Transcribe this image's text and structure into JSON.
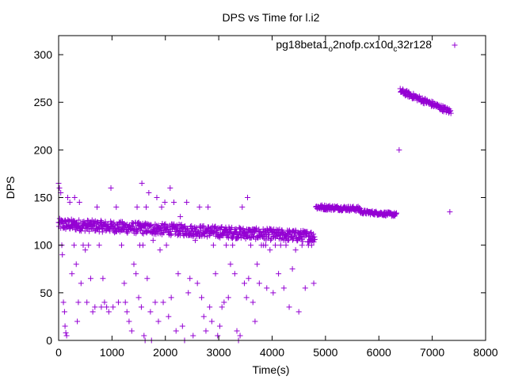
{
  "chart_data": {
    "type": "scatter",
    "title": "DPS vs Time for l.i2",
    "xlabel": "Time(s)",
    "ylabel": "DPS",
    "xlim": [
      0,
      8000
    ],
    "ylim": [
      0,
      320
    ],
    "xticks": [
      0,
      1000,
      2000,
      3000,
      4000,
      5000,
      6000,
      7000,
      8000
    ],
    "yticks": [
      0,
      50,
      100,
      150,
      200,
      250,
      300
    ],
    "grid": false,
    "legend_position": "top-right",
    "point_color": "#9400d3",
    "series": [
      {
        "name": "pg18beta1_o2nofp.cx10d_c32r128",
        "name_parts": {
          "base": "pg18beta1",
          "sub1": "o",
          "mid": "2nofp.cx10d",
          "sub2": "c",
          "tail": "32r128"
        },
        "marker": "plus",
        "segments": [
          {
            "x_start": 0,
            "x_end": 4800,
            "y_center_start": 122,
            "y_center_end": 109,
            "band": 12,
            "count": 720
          },
          {
            "x_start": 4820,
            "x_end": 5650,
            "y_center_start": 140,
            "y_center_end": 138,
            "band": 5,
            "count": 110
          },
          {
            "x_start": 5650,
            "x_end": 6330,
            "y_center_start": 135,
            "y_center_end": 132,
            "band": 4,
            "count": 90
          },
          {
            "x_start": 6400,
            "x_end": 7350,
            "y_center_start": 262,
            "y_center_end": 240,
            "band": 6,
            "count": 120
          }
        ],
        "outliers": [
          [
            0,
            165
          ],
          [
            15,
            160
          ],
          [
            40,
            155
          ],
          [
            60,
            100
          ],
          [
            70,
            90
          ],
          [
            90,
            40
          ],
          [
            110,
            30
          ],
          [
            120,
            15
          ],
          [
            135,
            8
          ],
          [
            150,
            5
          ],
          [
            170,
            150
          ],
          [
            210,
            145
          ],
          [
            250,
            70
          ],
          [
            290,
            100
          ],
          [
            300,
            150
          ],
          [
            330,
            80
          ],
          [
            350,
            20
          ],
          [
            370,
            40
          ],
          [
            390,
            145
          ],
          [
            420,
            60
          ],
          [
            460,
            100
          ],
          [
            500,
            95
          ],
          [
            530,
            40
          ],
          [
            560,
            100
          ],
          [
            600,
            65
          ],
          [
            640,
            30
          ],
          [
            680,
            35
          ],
          [
            720,
            140
          ],
          [
            760,
            100
          ],
          [
            800,
            35
          ],
          [
            830,
            65
          ],
          [
            860,
            40
          ],
          [
            900,
            35
          ],
          [
            940,
            30
          ],
          [
            980,
            160
          ],
          [
            1020,
            35
          ],
          [
            1080,
            140
          ],
          [
            1120,
            40
          ],
          [
            1180,
            100
          ],
          [
            1230,
            60
          ],
          [
            1250,
            40
          ],
          [
            1280,
            30
          ],
          [
            1320,
            20
          ],
          [
            1370,
            10
          ],
          [
            1410,
            80
          ],
          [
            1450,
            70
          ],
          [
            1470,
            140
          ],
          [
            1500,
            45
          ],
          [
            1520,
            100
          ],
          [
            1550,
            35
          ],
          [
            1560,
            165
          ],
          [
            1580,
            100
          ],
          [
            1600,
            5
          ],
          [
            1620,
            0
          ],
          [
            1640,
            140
          ],
          [
            1660,
            65
          ],
          [
            1690,
            155
          ],
          [
            1720,
            30
          ],
          [
            1740,
            0
          ],
          [
            1770,
            105
          ],
          [
            1810,
            40
          ],
          [
            1840,
            150
          ],
          [
            1870,
            20
          ],
          [
            1900,
            95
          ],
          [
            1930,
            140
          ],
          [
            1960,
            40
          ],
          [
            1990,
            145
          ],
          [
            2020,
            100
          ],
          [
            2060,
            25
          ],
          [
            2090,
            160
          ],
          [
            2110,
            45
          ],
          [
            2160,
            145
          ],
          [
            2200,
            10
          ],
          [
            2240,
            70
          ],
          [
            2280,
            130
          ],
          [
            2320,
            15
          ],
          [
            2360,
            0
          ],
          [
            2400,
            145
          ],
          [
            2430,
            50
          ],
          [
            2460,
            65
          ],
          [
            2490,
            115
          ],
          [
            2520,
            5
          ],
          [
            2560,
            105
          ],
          [
            2600,
            60
          ],
          [
            2640,
            140
          ],
          [
            2680,
            45
          ],
          [
            2720,
            25
          ],
          [
            2760,
            10
          ],
          [
            2800,
            140
          ],
          [
            2830,
            35
          ],
          [
            2870,
            20
          ],
          [
            2900,
            100
          ],
          [
            2940,
            70
          ],
          [
            2980,
            5
          ],
          [
            3020,
            15
          ],
          [
            3060,
            35
          ],
          [
            3100,
            40
          ],
          [
            3140,
            100
          ],
          [
            3180,
            45
          ],
          [
            3220,
            80
          ],
          [
            3260,
            100
          ],
          [
            3300,
            70
          ],
          [
            3340,
            10
          ],
          [
            3370,
            0
          ],
          [
            3400,
            5
          ],
          [
            3440,
            140
          ],
          [
            3480,
            60
          ],
          [
            3520,
            45
          ],
          [
            3540,
            150
          ],
          [
            3560,
            65
          ],
          [
            3600,
            100
          ],
          [
            3640,
            40
          ],
          [
            3680,
            20
          ],
          [
            3720,
            80
          ],
          [
            3760,
            60
          ],
          [
            3800,
            100
          ],
          [
            3840,
            100
          ],
          [
            3880,
            100
          ],
          [
            3900,
            55
          ],
          [
            3960,
            95
          ],
          [
            4020,
            50
          ],
          [
            4060,
            100
          ],
          [
            4120,
            70
          ],
          [
            4160,
            100
          ],
          [
            4220,
            55
          ],
          [
            4260,
            100
          ],
          [
            4320,
            35
          ],
          [
            4380,
            75
          ],
          [
            4440,
            95
          ],
          [
            4500,
            30
          ],
          [
            4560,
            100
          ],
          [
            4620,
            55
          ],
          [
            4680,
            100
          ],
          [
            4740,
            100
          ],
          [
            4780,
            60
          ],
          [
            6380,
            200
          ],
          [
            7330,
            135
          ]
        ]
      }
    ]
  }
}
